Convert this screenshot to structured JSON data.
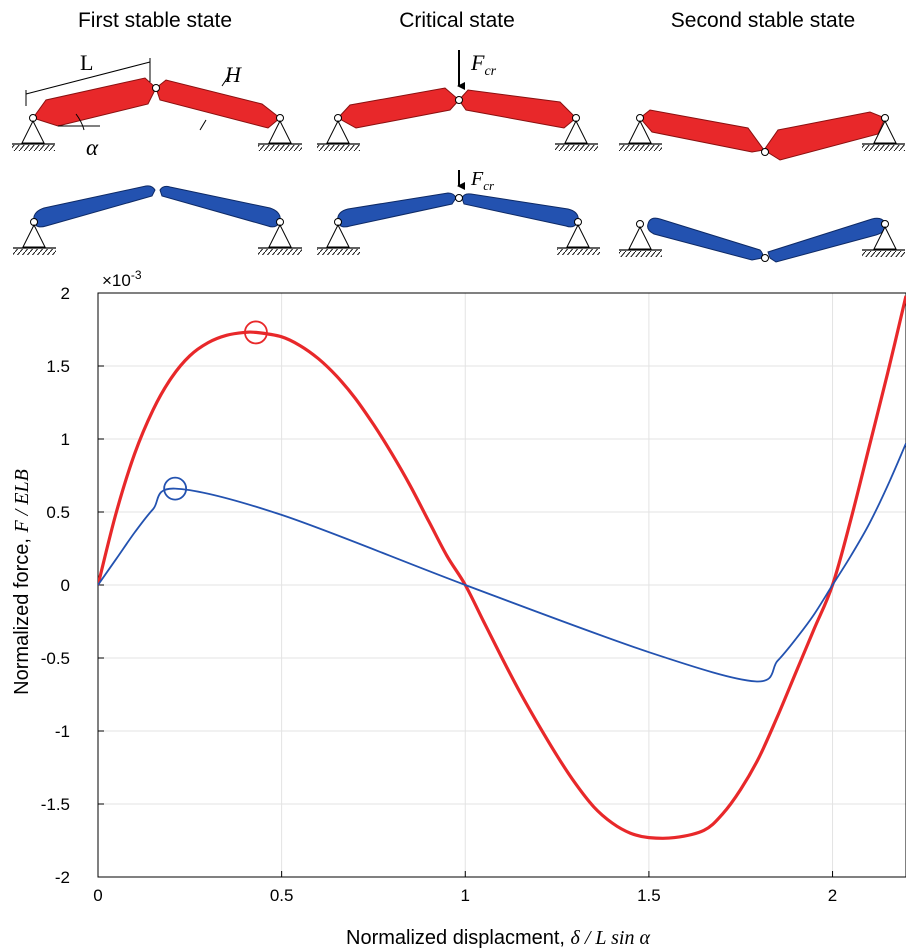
{
  "schematic": {
    "titles": [
      "First stable state",
      "Critical state",
      "Second stable state"
    ],
    "labels": {
      "length": "L",
      "thickness": "H",
      "angle": "α",
      "force_symbol": "F",
      "force_subscript": "cr"
    },
    "colors": {
      "red": "#e8282a",
      "blue": "#2352b0"
    }
  },
  "chart_data": {
    "type": "line",
    "xlabel_text": "Normalized displacment, ",
    "xlabel_math": "δ / L sin α",
    "ylabel_text": "Normalized force, ",
    "ylabel_math": "F / ELB",
    "y_multiplier": "×10",
    "y_multiplier_exp": "-3",
    "xlim": [
      0,
      2.2
    ],
    "ylim": [
      -2,
      2
    ],
    "x_ticks": [
      0,
      0.5,
      1,
      1.5,
      2
    ],
    "x_tick_labels": [
      "0",
      "0.5",
      "1",
      "1.5",
      "2"
    ],
    "y_ticks": [
      -2,
      -1.5,
      -1,
      -0.5,
      0,
      0.5,
      1,
      1.5,
      2
    ],
    "y_tick_labels": [
      "-2",
      "-1.5",
      "-1",
      "-0.5",
      "0",
      "0.5",
      "1",
      "1.5",
      "2"
    ],
    "grid": true,
    "series": [
      {
        "color": "#e8282a",
        "x": [
          0,
          0.05,
          0.1,
          0.15,
          0.2,
          0.25,
          0.3,
          0.35,
          0.4,
          0.43,
          0.5,
          0.55,
          0.6,
          0.65,
          0.7,
          0.75,
          0.8,
          0.85,
          0.9,
          0.95,
          1.0,
          1.05,
          1.1,
          1.15,
          1.2,
          1.25,
          1.3,
          1.35,
          1.4,
          1.45,
          1.5,
          1.57,
          1.65,
          1.7,
          1.75,
          1.8,
          1.85,
          1.9,
          1.95,
          2.0,
          2.05,
          2.1,
          2.15,
          2.2
        ],
        "y": [
          0,
          0.5,
          0.9,
          1.2,
          1.42,
          1.57,
          1.66,
          1.71,
          1.73,
          1.73,
          1.7,
          1.64,
          1.55,
          1.43,
          1.28,
          1.1,
          0.9,
          0.68,
          0.44,
          0.2,
          0,
          -0.25,
          -0.5,
          -0.74,
          -0.96,
          -1.17,
          -1.36,
          -1.52,
          -1.63,
          -1.7,
          -1.73,
          -1.73,
          -1.68,
          -1.57,
          -1.4,
          -1.18,
          -0.9,
          -0.6,
          -0.3,
          0,
          0.45,
          0.95,
          1.45,
          1.98
        ]
      },
      {
        "color": "#2352b0",
        "x": [
          0,
          0.05,
          0.1,
          0.15,
          0.21,
          0.5,
          1.0,
          1.5,
          1.79,
          1.85,
          1.9,
          1.95,
          2.0,
          2.05,
          2.1,
          2.15,
          2.2
        ],
        "y": [
          0,
          0.18,
          0.36,
          0.52,
          0.66,
          0.48,
          0,
          -0.46,
          -0.66,
          -0.52,
          -0.37,
          -0.2,
          0,
          0.2,
          0.42,
          0.68,
          0.97
        ]
      }
    ],
    "markers": [
      {
        "color": "#e8282a",
        "x": 0.43,
        "y": 1.73
      },
      {
        "color": "#2352b0",
        "x": 0.21,
        "y": 0.66
      }
    ]
  }
}
